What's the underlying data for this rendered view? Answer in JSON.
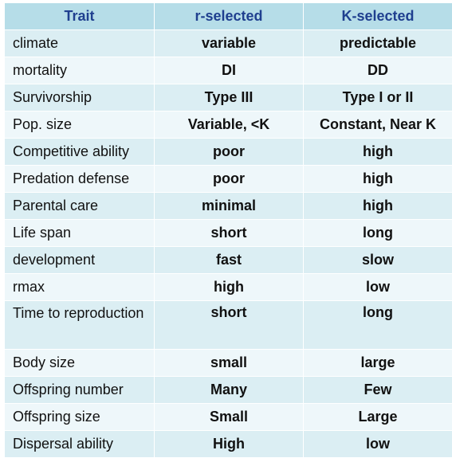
{
  "header": {
    "trait": "Trait",
    "r_selected": "r-selected",
    "k_selected": "K-selected"
  },
  "rows": [
    {
      "trait": "climate",
      "r": "variable",
      "k": "predictable"
    },
    {
      "trait": "mortality",
      "r": "DI",
      "k": "DD"
    },
    {
      "trait": "Survivorship",
      "r": "Type III",
      "k": "Type I or II"
    },
    {
      "trait": "Pop. size",
      "r": "Variable, <K",
      "k": "Constant, Near K"
    },
    {
      "trait": "Competitive ability",
      "r": "poor",
      "k": "high"
    },
    {
      "trait": "Predation defense",
      "r": "poor",
      "k": "high"
    },
    {
      "trait": "Parental care",
      "r": "minimal",
      "k": "high"
    },
    {
      "trait": "Life span",
      "r": "short",
      "k": "long"
    },
    {
      "trait": "development",
      "r": "fast",
      "k": "slow"
    },
    {
      "trait": "rmax",
      "r": "high",
      "k": "low"
    },
    {
      "trait": "Time to reproduction",
      "r": "short",
      "k": "long"
    },
    {
      "trait": "Body size",
      "r": "small",
      "k": "large"
    },
    {
      "trait": "Offspring number",
      "r": "Many",
      "k": "Few"
    },
    {
      "trait": "Offspring size",
      "r": "Small",
      "k": "Large"
    },
    {
      "trait": "Dispersal ability",
      "r": "High",
      "k": "low"
    }
  ],
  "colors": {
    "header_bg": "#b6dde8",
    "header_text": "#1f3f8f",
    "row_dark": "#dbeef3",
    "row_light": "#eef7fa"
  }
}
